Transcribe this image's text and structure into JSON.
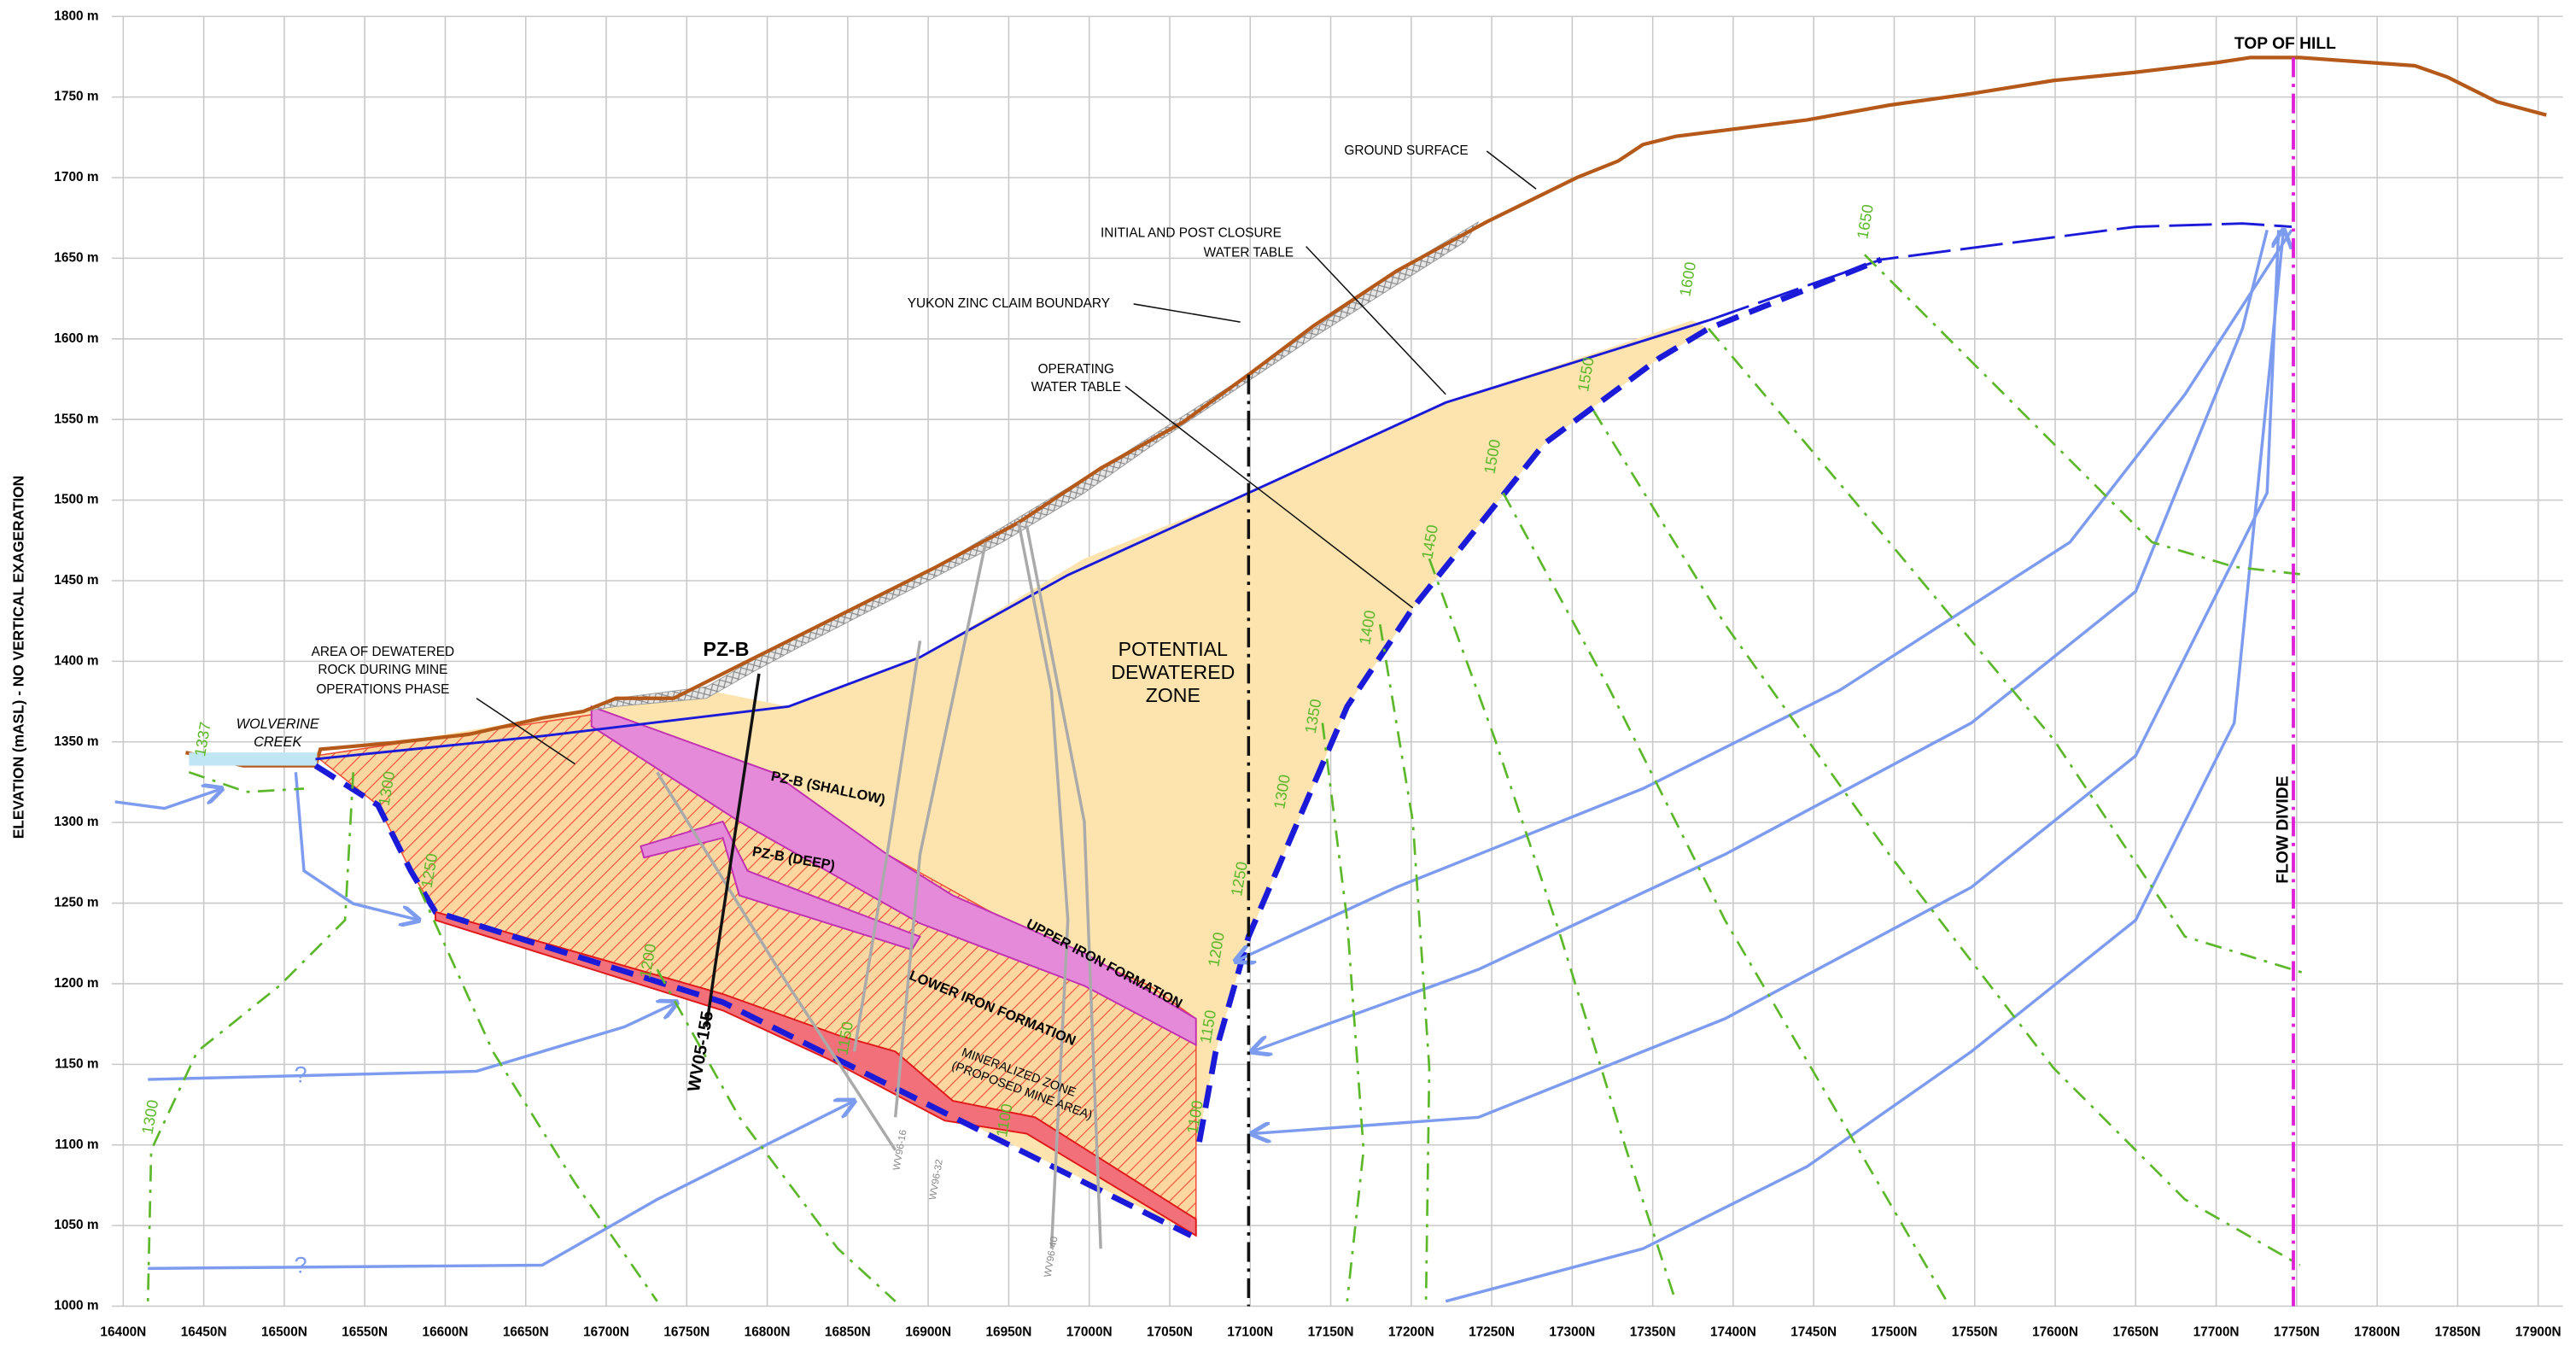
{
  "y_axis": {
    "title": "ELEVATION (mASL) - NO VERTICAL EXAGERATION",
    "ticks": [
      "1800 m",
      "1750 m",
      "1700 m",
      "1650 m",
      "1600 m",
      "1550 m",
      "1500 m",
      "1450 m",
      "1400 m",
      "1350 m",
      "1300 m",
      "1250 m",
      "1200 m",
      "1150 m",
      "1100 m",
      "1050 m",
      "1000 m"
    ]
  },
  "x_axis": {
    "ticks": [
      "16400N",
      "16450N",
      "16500N",
      "16550N",
      "16600N",
      "16650N",
      "16700N",
      "16750N",
      "16800N",
      "16850N",
      "16900N",
      "16950N",
      "17000N",
      "17050N",
      "17100N",
      "17150N",
      "17200N",
      "17250N",
      "17300N",
      "17350N",
      "17400N",
      "17450N",
      "17500N",
      "17550N",
      "17600N",
      "17650N",
      "17700N",
      "17750N",
      "17800N",
      "17850N",
      "17900N"
    ]
  },
  "labels": [
    "TOP OF HILL",
    "GROUND SURFACE",
    "INITIAL AND POST CLOSURE",
    "WATER TABLE",
    "YUKON ZINC CLAIM BOUNDARY",
    "OPERATING",
    "WATER TABLE",
    "POTENTIAL",
    "DEWATERED",
    "ZONE",
    "AREA OF DEWATERED",
    "ROCK DURING MINE",
    "OPERATIONS PHASE",
    "PZ-B",
    "PZ-B (SHALLOW)",
    "PZ-B (DEEP)",
    "UPPER   IRON FORMATION",
    "LOWER IRON FORMATION",
    "MINERALIZED ZONE",
    "(PROPOSED MINE AREA)",
    "WOLVERINE",
    "CREEK",
    "FLOW DIVIDE",
    "WV05-155",
    "?",
    "?"
  ],
  "contour_labels": [
    "1337",
    "1300",
    "1300",
    "1250",
    "1200",
    "1150",
    "1100",
    "1100",
    "1150",
    "1200",
    "1250",
    "1300",
    "1350",
    "1400",
    "1450",
    "1500",
    "1550",
    "1600",
    "1650"
  ],
  "well_labels": [
    "WV96-16",
    "WV96-32",
    "WV96-40"
  ]
}
